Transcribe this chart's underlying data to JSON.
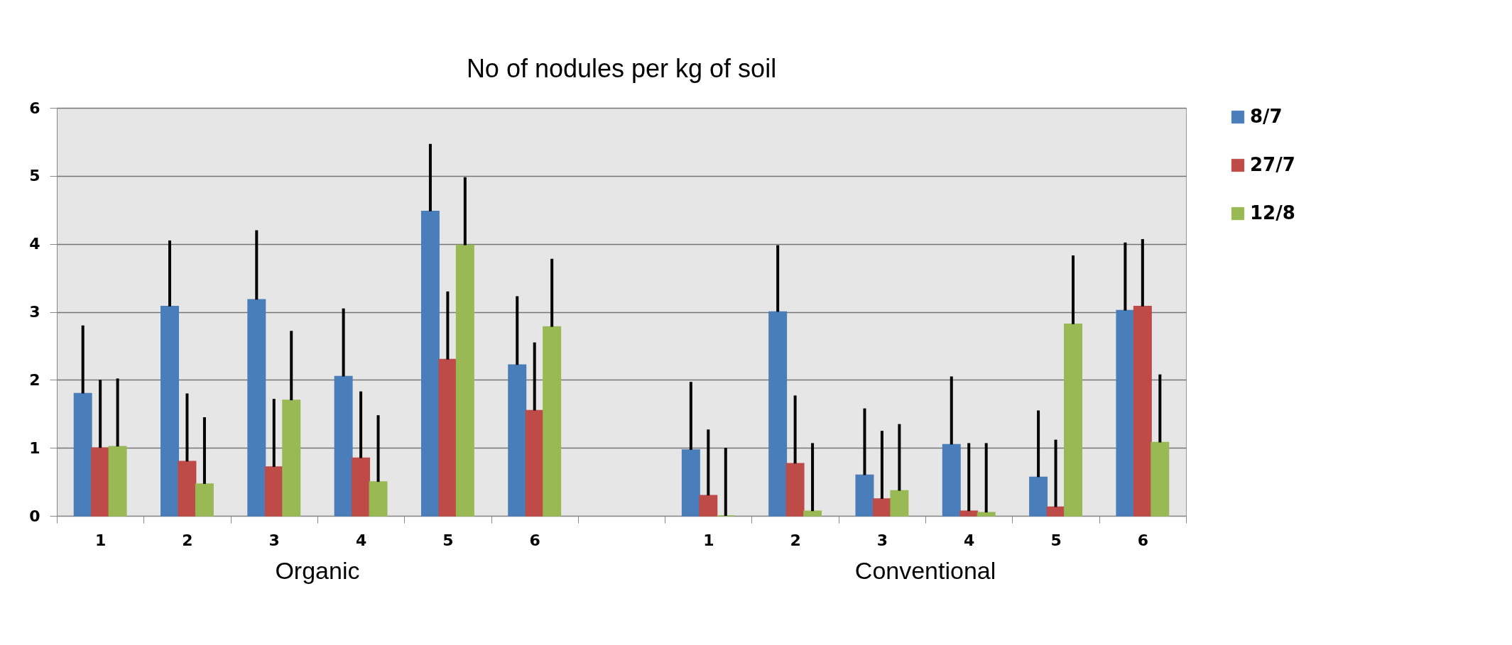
{
  "chart_data": {
    "type": "bar",
    "title": "No of nodules per kg of soil",
    "categories": [
      "1",
      "2",
      "3",
      "4",
      "5",
      "6",
      null,
      "1",
      "2",
      "3",
      "4",
      "5",
      "6"
    ],
    "series": [
      {
        "name": "8/7",
        "color": "#4a7ebb",
        "values": [
          1.8,
          3.08,
          3.18,
          2.05,
          4.48,
          2.22,
          null,
          0.97,
          3.0,
          0.6,
          1.05,
          0.57,
          3.02
        ],
        "errors": [
          [
            1.8,
            2.8
          ],
          [
            3.08,
            4.05
          ],
          [
            3.18,
            4.2
          ],
          [
            2.05,
            3.05
          ],
          [
            4.48,
            5.47
          ],
          [
            2.22,
            3.23
          ],
          null,
          [
            0.97,
            1.97
          ],
          [
            3.0,
            3.98
          ],
          [
            0.6,
            1.58
          ],
          [
            1.05,
            2.05
          ],
          [
            0.57,
            1.55
          ],
          [
            3.02,
            4.02
          ]
        ]
      },
      {
        "name": "27/7",
        "color": "#be4b48",
        "values": [
          1.0,
          0.8,
          0.72,
          0.85,
          2.3,
          1.55,
          null,
          0.3,
          0.77,
          0.25,
          0.07,
          0.13,
          3.08
        ],
        "errors": [
          [
            1.0,
            2.0
          ],
          [
            0.8,
            1.8
          ],
          [
            0.72,
            1.72
          ],
          [
            0.85,
            1.83
          ],
          [
            2.3,
            3.3
          ],
          [
            1.55,
            2.55
          ],
          null,
          [
            0.3,
            1.27
          ],
          [
            0.77,
            1.77
          ],
          [
            0.25,
            1.25
          ],
          [
            0.07,
            1.07
          ],
          [
            0.13,
            1.12
          ],
          [
            3.08,
            4.07
          ]
        ]
      },
      {
        "name": "12/8",
        "color": "#98b954",
        "values": [
          1.02,
          0.47,
          1.7,
          0.5,
          3.98,
          2.78,
          null,
          0.0,
          0.07,
          0.37,
          0.05,
          2.82,
          1.08
        ],
        "errors": [
          [
            1.02,
            2.02
          ],
          [
            0.47,
            1.45
          ],
          [
            1.7,
            2.72
          ],
          [
            0.5,
            1.48
          ],
          [
            3.98,
            4.98
          ],
          [
            2.78,
            3.78
          ],
          null,
          [
            0.0,
            1.0
          ],
          [
            0.07,
            1.07
          ],
          [
            0.37,
            1.35
          ],
          [
            0.05,
            1.07
          ],
          [
            2.82,
            3.83
          ],
          [
            1.08,
            2.08
          ]
        ]
      }
    ],
    "ylim": [
      0,
      6
    ],
    "yticks": [
      0,
      1,
      2,
      3,
      4,
      5,
      6
    ],
    "grid": "y",
    "legend": "right",
    "annotations": [
      "Organic",
      "Conventional"
    ]
  }
}
